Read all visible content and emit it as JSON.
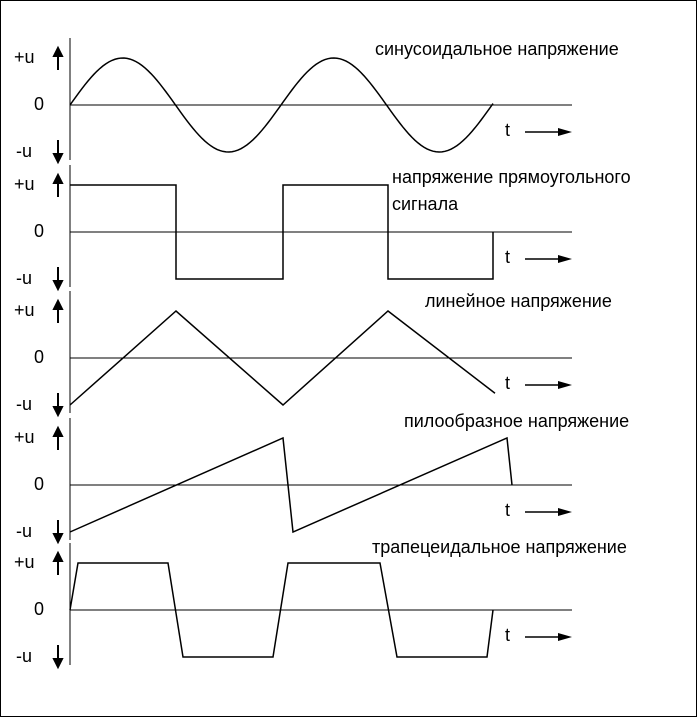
{
  "panels": [
    {
      "title": [
        "синусоидальное напряжение"
      ],
      "pos_label": "+u",
      "zero_label": "0",
      "neg_label": "-u",
      "time_label": "t"
    },
    {
      "title": [
        "напряжение прямоугольного",
        "сигнала"
      ],
      "pos_label": "+u",
      "zero_label": "0",
      "neg_label": "-u",
      "time_label": "t"
    },
    {
      "title": [
        "линейное напряжение"
      ],
      "pos_label": "+u",
      "zero_label": "0",
      "neg_label": "-u",
      "time_label": "t"
    },
    {
      "title": [
        "пилообразное напряжение"
      ],
      "pos_label": "+u",
      "zero_label": "0",
      "neg_label": "-u",
      "time_label": "t"
    },
    {
      "title": [
        "трапецеидальное напряжение"
      ],
      "pos_label": "+u",
      "zero_label": "0",
      "neg_label": "-u",
      "time_label": "t"
    }
  ]
}
